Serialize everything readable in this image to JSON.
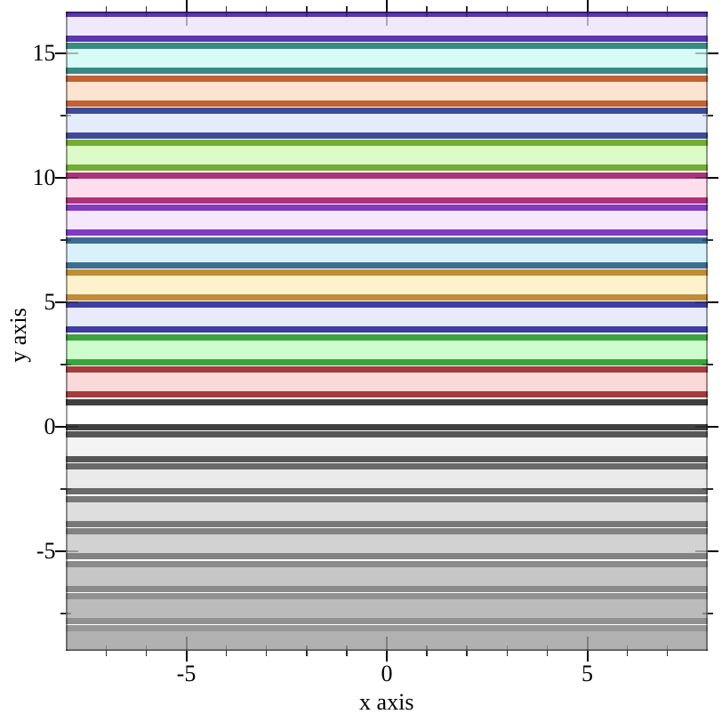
{
  "chart_data": {
    "type": "area",
    "subtype": "horizontal-interval-bands",
    "title": "",
    "xlabel": "x axis",
    "ylabel": "y axis",
    "xlim": [
      -8,
      8
    ],
    "ylim": [
      -9.0,
      16.7
    ],
    "grid": false,
    "legend": "none",
    "x_ticks": {
      "major": [
        {
          "value": -5,
          "label": "-5"
        },
        {
          "value": 0,
          "label": "0"
        },
        {
          "value": 5,
          "label": "5"
        }
      ],
      "minor_values": [
        -7,
        -6,
        -4,
        -3,
        -2,
        -1,
        1,
        2,
        3,
        4,
        6,
        7
      ]
    },
    "y_ticks": {
      "major": [
        {
          "value": 15,
          "label": "15"
        },
        {
          "value": 10,
          "label": "10"
        },
        {
          "value": 5,
          "label": "5"
        },
        {
          "value": 0,
          "label": "0"
        },
        {
          "value": -5,
          "label": "-5"
        }
      ],
      "minor_values": [
        12.5,
        7.5,
        2.5,
        -2.5,
        -7.5
      ]
    },
    "band_x_start": -8,
    "band_x_end": 8,
    "bands": [
      {
        "index": 12,
        "y_start": 15.6,
        "y_end": 16.6,
        "line": "#5c35b3",
        "fill": "#efe9fb"
      },
      {
        "index": 11,
        "y_start": 14.3,
        "y_end": 15.3,
        "line": "#3a8a84",
        "fill": "#d7fbf5"
      },
      {
        "index": 10,
        "y_start": 13.0,
        "y_end": 14.0,
        "line": "#bf6236",
        "fill": "#fce4d0"
      },
      {
        "index": 9,
        "y_start": 11.7,
        "y_end": 12.7,
        "line": "#3e4b93",
        "fill": "#e4ecfb"
      },
      {
        "index": 8,
        "y_start": 10.4,
        "y_end": 11.4,
        "line": "#73ad35",
        "fill": "#dcfbc8"
      },
      {
        "index": 7,
        "y_start": 9.1,
        "y_end": 10.1,
        "line": "#a83577",
        "fill": "#fcdeed"
      },
      {
        "index": 6,
        "y_start": 7.8,
        "y_end": 8.8,
        "line": "#8339c2",
        "fill": "#f6e8fc"
      },
      {
        "index": 5,
        "y_start": 6.5,
        "y_end": 7.5,
        "line": "#3d6d92",
        "fill": "#d8f2fb"
      },
      {
        "index": 4,
        "y_start": 5.2,
        "y_end": 6.2,
        "line": "#c08c35",
        "fill": "#fdf2cc"
      },
      {
        "index": 3,
        "y_start": 3.9,
        "y_end": 4.9,
        "line": "#3d3da3",
        "fill": "#e9ebfa"
      },
      {
        "index": 2,
        "y_start": 2.6,
        "y_end": 3.6,
        "line": "#3da23d",
        "fill": "#cdfccd"
      },
      {
        "index": 1,
        "y_start": 1.3,
        "y_end": 2.3,
        "line": "#a33d3d",
        "fill": "#fcd9d9"
      },
      {
        "index": 0,
        "y_start": 0.0,
        "y_end": 1.0,
        "line": "#404040",
        "fill": "#ffffff"
      },
      {
        "index": -1,
        "y_start": -1.3,
        "y_end": -0.3,
        "line": "#575757",
        "fill": "#f4f4f4"
      },
      {
        "index": -2,
        "y_start": -2.6,
        "y_end": -1.6,
        "line": "#6a6a6a",
        "fill": "#eaeaea"
      },
      {
        "index": -3,
        "y_start": -3.9,
        "y_end": -2.9,
        "line": "#787878",
        "fill": "#dedede"
      },
      {
        "index": -4,
        "y_start": -5.2,
        "y_end": -4.2,
        "line": "#828282",
        "fill": "#d2d2d2"
      },
      {
        "index": -5,
        "y_start": -6.5,
        "y_end": -5.5,
        "line": "#8a8a8a",
        "fill": "#c6c6c6"
      },
      {
        "index": -6,
        "y_start": -7.8,
        "y_end": -6.8,
        "line": "#909090",
        "fill": "#bbbbbb"
      },
      {
        "index": -7,
        "y_start": -9.1,
        "y_end": -8.1,
        "line": "#979797",
        "fill": "#b1b1b1"
      }
    ],
    "colors": {
      "frame": "#000000",
      "background": "#ffffff",
      "tick": "#000000"
    }
  }
}
